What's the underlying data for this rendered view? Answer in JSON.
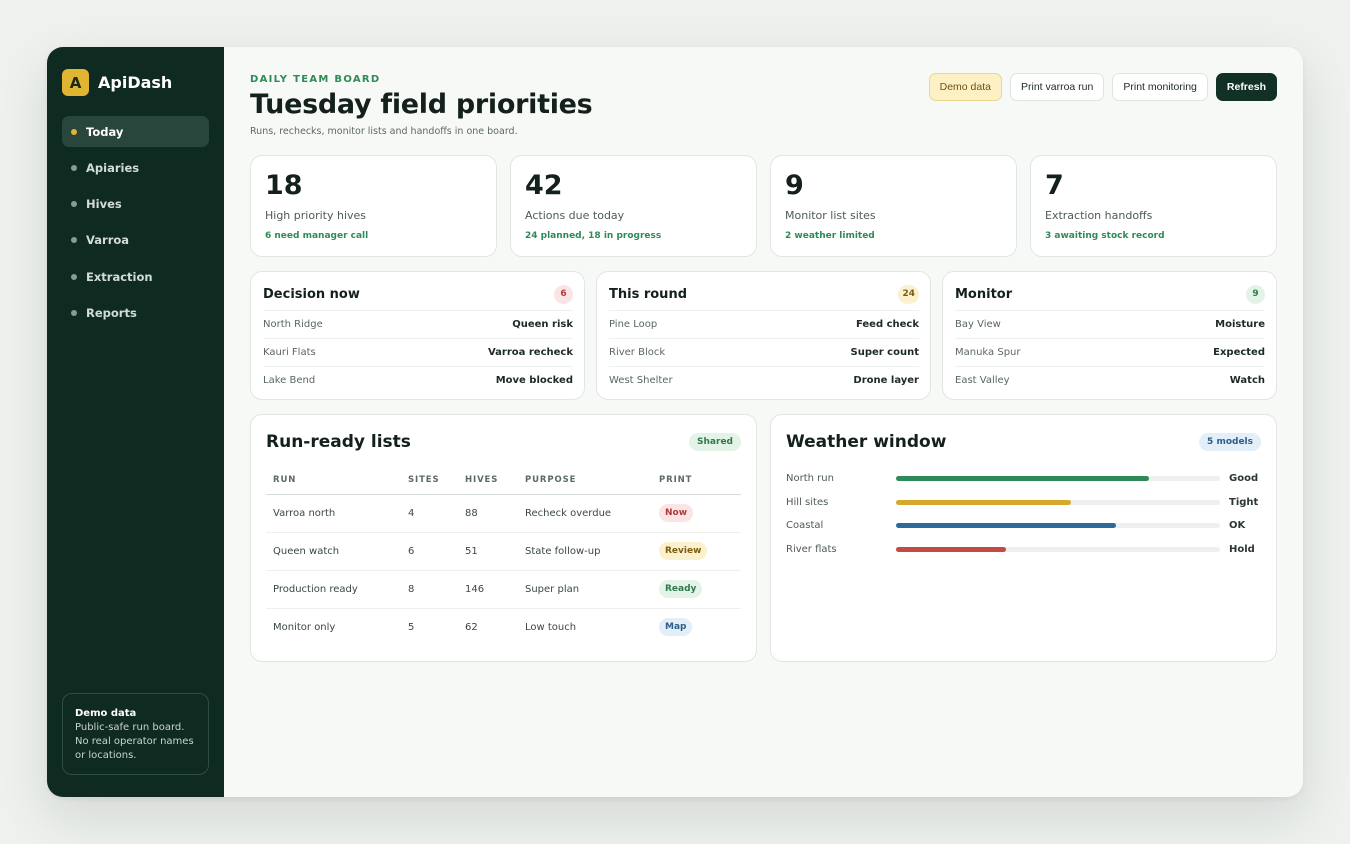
{
  "brand": {
    "logo_letter": "A",
    "name": "ApiDash"
  },
  "sidebar": {
    "items": [
      {
        "label": "Today",
        "active": true
      },
      {
        "label": "Apiaries",
        "active": false
      },
      {
        "label": "Hives",
        "active": false
      },
      {
        "label": "Varroa",
        "active": false
      },
      {
        "label": "Extraction",
        "active": false
      },
      {
        "label": "Reports",
        "active": false
      }
    ],
    "demo_title": "Demo data",
    "demo_text": "Public-safe run board. No real operator names or locations."
  },
  "header": {
    "eyebrow": "DAILY TEAM BOARD",
    "title": "Tuesday field priorities",
    "subtitle": "Runs, rechecks, monitor lists and handoffs in one board.",
    "buttons": {
      "demo": "Demo data",
      "print_varroa": "Print varroa run",
      "print_monitoring": "Print monitoring",
      "refresh": "Refresh"
    }
  },
  "kpis": [
    {
      "value": "18",
      "label": "High priority hives",
      "note": "6 need manager call"
    },
    {
      "value": "42",
      "label": "Actions due today",
      "note": "24 planned, 18 in progress"
    },
    {
      "value": "9",
      "label": "Monitor list sites",
      "note": "2 weather limited"
    },
    {
      "value": "7",
      "label": "Extraction handoffs",
      "note": "3 awaiting stock record"
    }
  ],
  "lists": [
    {
      "title": "Decision now",
      "count": "6",
      "badge_bg": "#fbe4e4",
      "badge_color": "#b03a3a",
      "rows": [
        {
          "name": "North Ridge",
          "value": "Queen risk"
        },
        {
          "name": "Kauri Flats",
          "value": "Varroa recheck"
        },
        {
          "name": "Lake Bend",
          "value": "Move blocked"
        }
      ]
    },
    {
      "title": "This round",
      "count": "24",
      "badge_bg": "#fcf1cf",
      "badge_color": "#7a5d0c",
      "rows": [
        {
          "name": "Pine Loop",
          "value": "Feed check"
        },
        {
          "name": "River Block",
          "value": "Super count"
        },
        {
          "name": "West Shelter",
          "value": "Drone layer"
        }
      ]
    },
    {
      "title": "Monitor",
      "count": "9",
      "badge_bg": "#e3f3e8",
      "badge_color": "#2e7a4c",
      "rows": [
        {
          "name": "Bay View",
          "value": "Moisture"
        },
        {
          "name": "Manuka Spur",
          "value": "Expected"
        },
        {
          "name": "East Valley",
          "value": "Watch"
        }
      ]
    }
  ],
  "run_ready": {
    "title": "Run-ready lists",
    "badge": "Shared",
    "columns": [
      "RUN",
      "SITES",
      "HIVES",
      "PURPOSE",
      "PRINT"
    ],
    "rows": [
      {
        "run": "Varroa north",
        "sites": "4",
        "hives": "88",
        "purpose": "Recheck overdue",
        "print": "Now",
        "tag_bg": "#fbe4e4",
        "tag_color": "#b03a3a"
      },
      {
        "run": "Queen watch",
        "sites": "6",
        "hives": "51",
        "purpose": "State follow-up",
        "print": "Review",
        "tag_bg": "#fcf1cf",
        "tag_color": "#7a5d0c"
      },
      {
        "run": "Production ready",
        "sites": "8",
        "hives": "146",
        "purpose": "Super plan",
        "print": "Ready",
        "tag_bg": "#e3f3e8",
        "tag_color": "#2e7a4c"
      },
      {
        "run": "Monitor only",
        "sites": "5",
        "hives": "62",
        "purpose": "Low touch",
        "print": "Map",
        "tag_bg": "#e2eef8",
        "tag_color": "#2d5f8a"
      }
    ]
  },
  "weather": {
    "title": "Weather window",
    "badge": "5 models",
    "rows": [
      {
        "label": "North run",
        "fraction": 0.78,
        "color": "#2e8a57",
        "status": "Good"
      },
      {
        "label": "Hill sites",
        "fraction": 0.54,
        "color": "#d4a92c",
        "status": "Tight"
      },
      {
        "label": "Coastal",
        "fraction": 0.68,
        "color": "#2d6a9a",
        "status": "OK"
      },
      {
        "label": "River flats",
        "fraction": 0.34,
        "color": "#c44a44",
        "status": "Hold"
      }
    ]
  }
}
